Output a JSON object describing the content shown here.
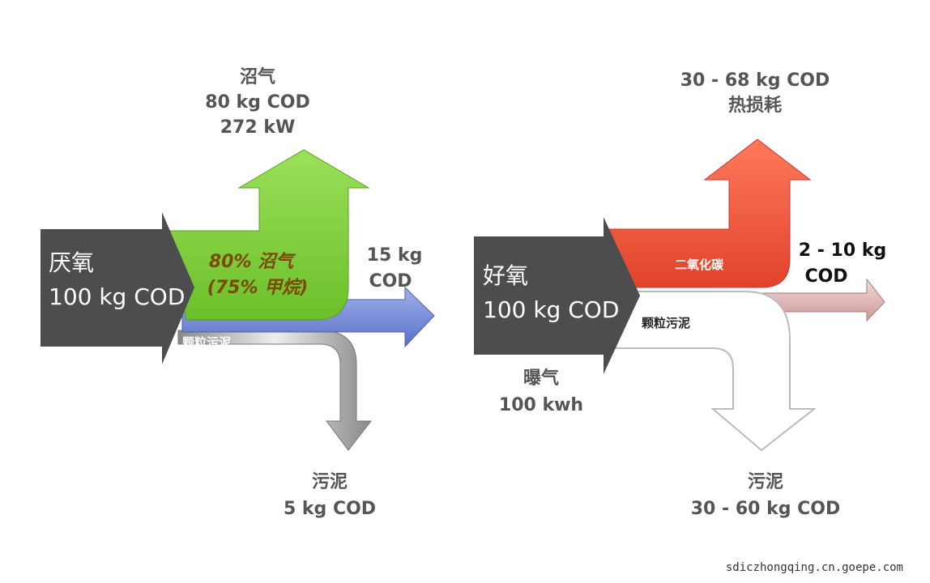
{
  "left": {
    "biogas_label": "沼气",
    "biogas_cod": "80 kg COD",
    "biogas_power": "272 kW",
    "input_label": "厌氧",
    "input_cod": "100 kg COD",
    "flow_line1": "80% 沼气",
    "flow_line2": "(75% 甲烷)",
    "effluent_line1": "15 kg",
    "effluent_line2": "COD",
    "granular": "颗粒污泥",
    "sludge_label": "污泥",
    "sludge_cod": "5 kg COD"
  },
  "right": {
    "heat_cod": "30 - 68 kg COD",
    "heat_label": "热损耗",
    "input_label": "好氧",
    "input_cod": "100 kg COD",
    "co2": "二氧化碳",
    "effluent_line1": "2 - 10 kg",
    "effluent_line2": "COD",
    "granular": "颗粒污泥",
    "aeration_label": "曝气",
    "aeration_power": "100 kwh",
    "sludge_label": "污泥",
    "sludge_cod": "30 - 60 kg COD"
  },
  "footer": "sdiczhongqing.cn.goepe.com"
}
